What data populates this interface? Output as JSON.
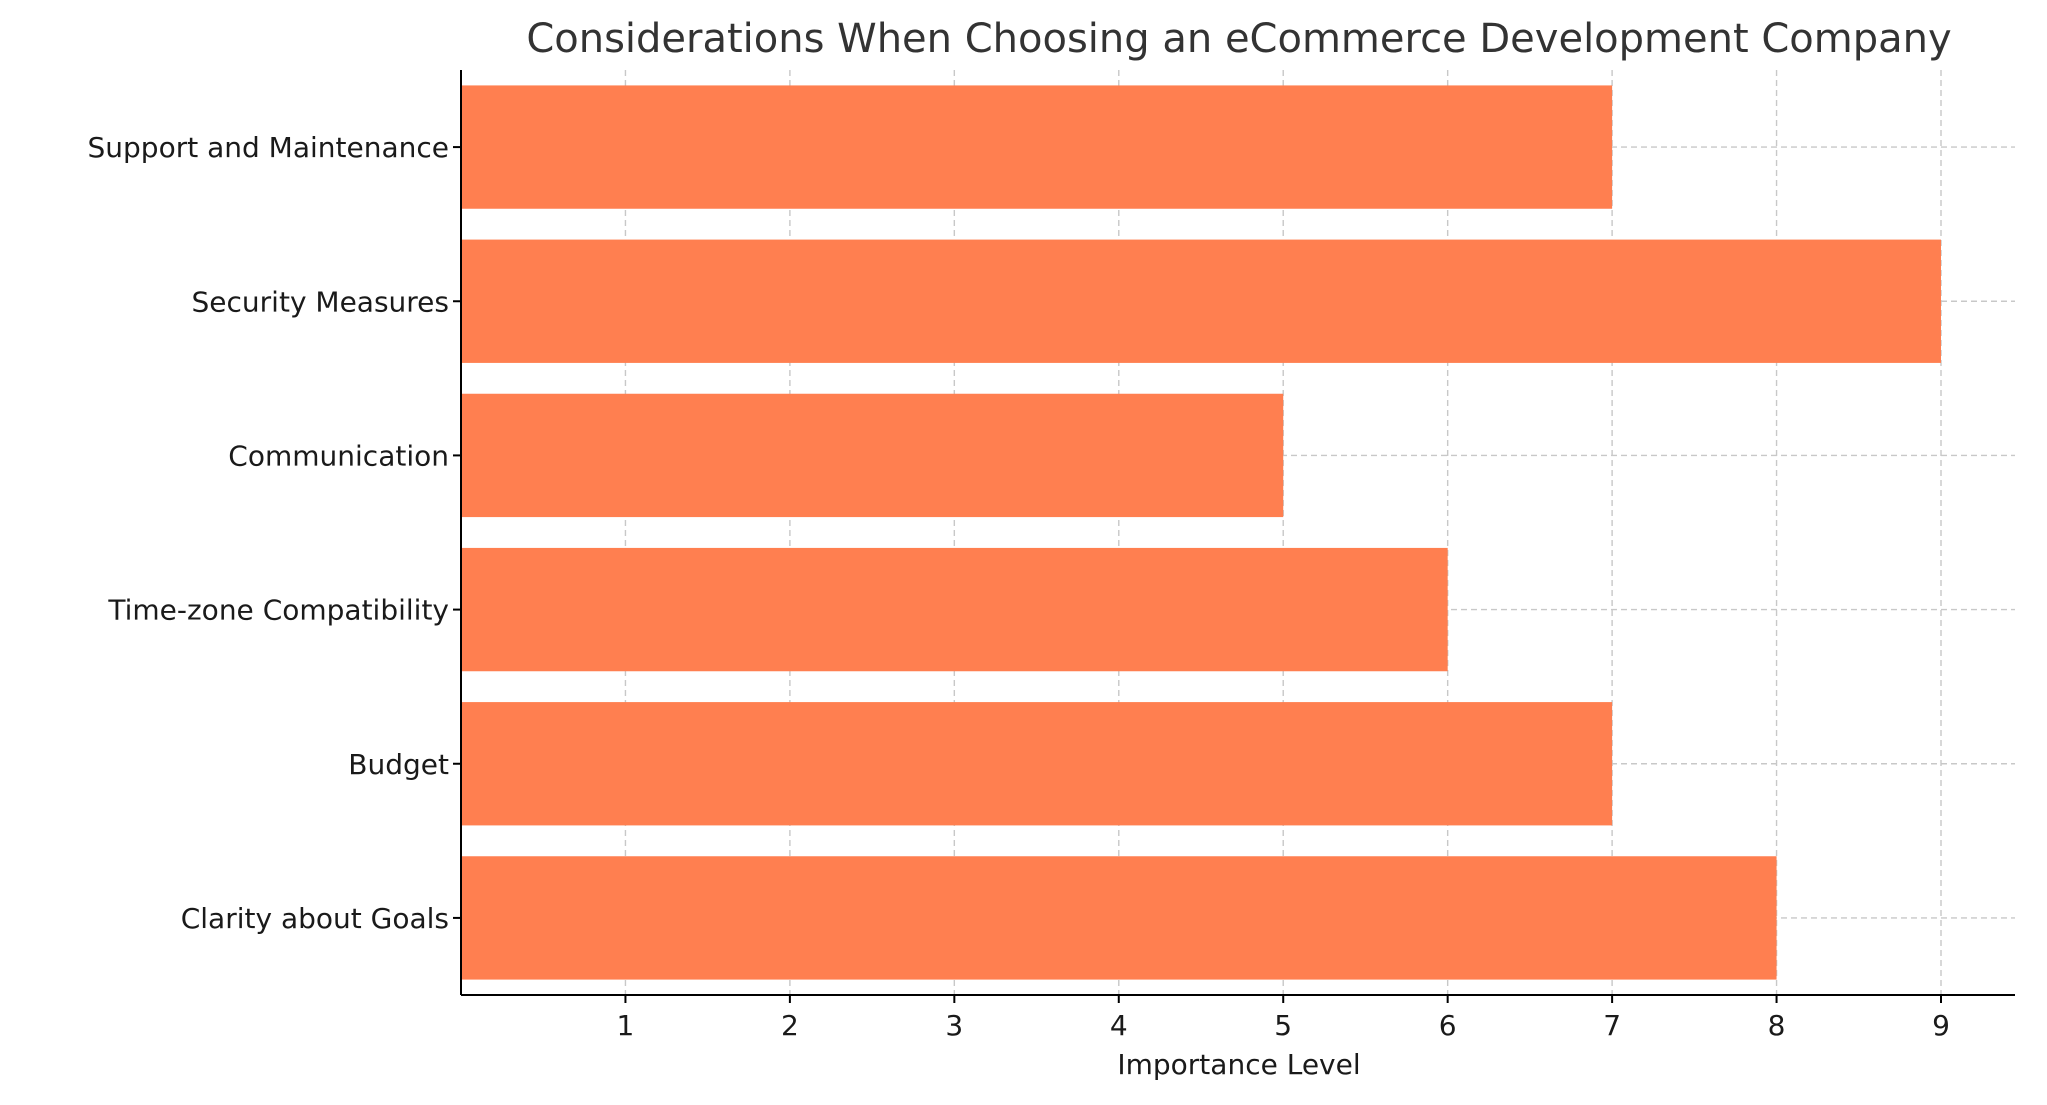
{
  "chart_data": {
    "type": "bar",
    "orientation": "horizontal",
    "title": "Considerations When Choosing an eCommerce Development Company",
    "xlabel": "Importance Level",
    "ylabel": "",
    "categories": [
      "Clarity about Goals",
      "Budget",
      "Time-zone Compatibility",
      "Communication",
      "Security Measures",
      "Support and Maintenance"
    ],
    "values": [
      8,
      7,
      6,
      5,
      9,
      7
    ],
    "xlim": [
      0,
      9.45
    ],
    "xticks": [
      1,
      2,
      3,
      4,
      5,
      6,
      7,
      8,
      9
    ],
    "grid": true,
    "legend": "none",
    "colors": {
      "bar": "#ff7f50",
      "grid": "#c8c8c8",
      "axis": "#000000",
      "title": "#333333"
    }
  }
}
